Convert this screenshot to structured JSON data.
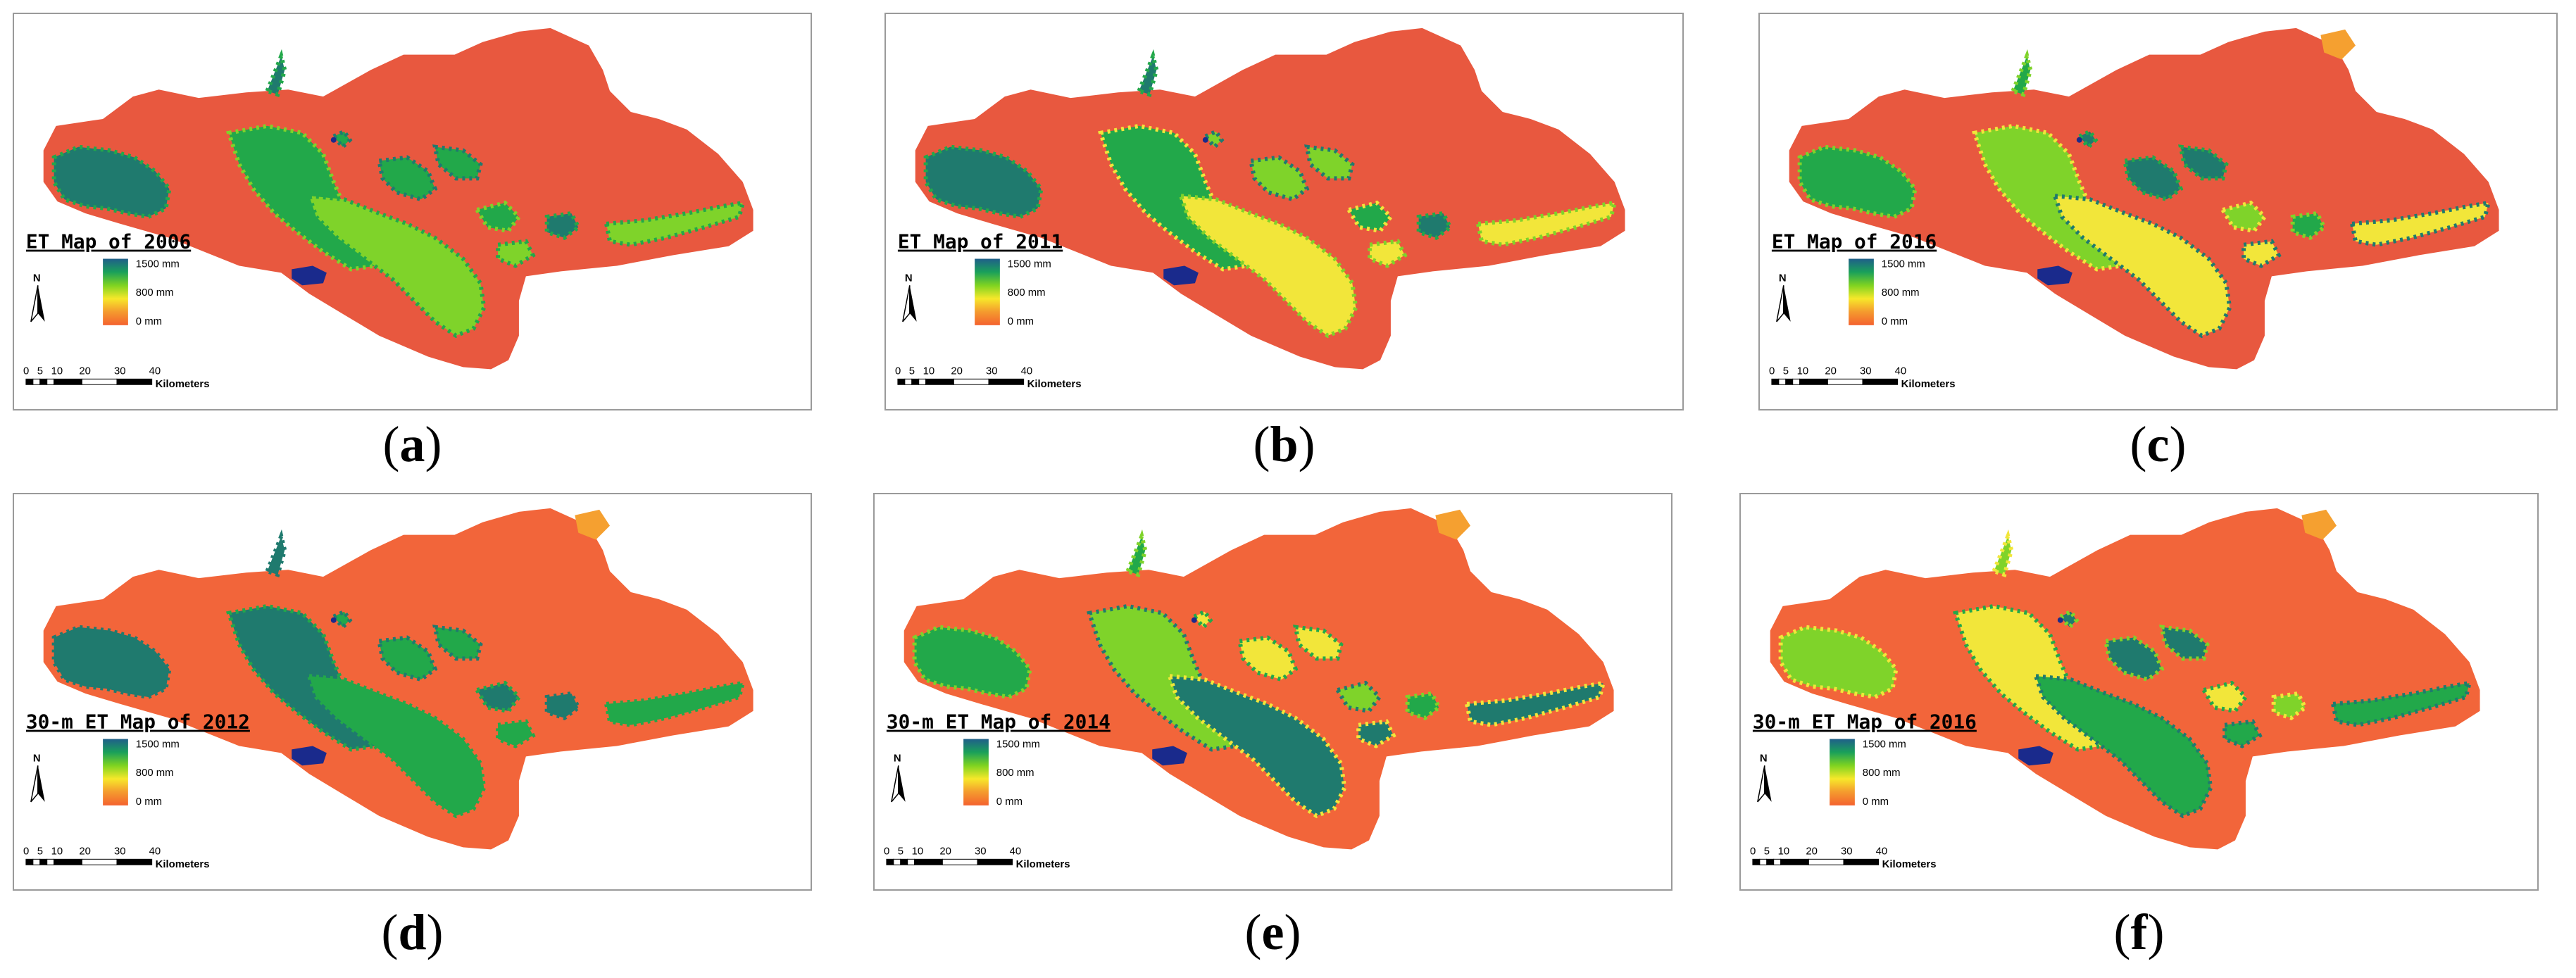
{
  "panels": [
    {
      "caption": "a",
      "title": "ET Map of 2006"
    },
    {
      "caption": "b",
      "title": "ET Map of 2011"
    },
    {
      "caption": "c",
      "title": "ET Map of 2016"
    },
    {
      "caption": "d",
      "title": "30-m ET Map of 2012"
    },
    {
      "caption": "e",
      "title": "30-m ET Map of 2014"
    },
    {
      "caption": "f",
      "title": "30-m ET Map of 2016"
    }
  ],
  "legend": {
    "max_label": "1500 mm",
    "mid_label": "800 mm",
    "min_label": "0 mm",
    "colors": [
      "#1f5f8a",
      "#1aa05a",
      "#7ed321",
      "#f7e82a",
      "#f49a2e",
      "#f4622f"
    ]
  },
  "north_label": "N",
  "scale_bar": {
    "ticks": [
      "0",
      "5",
      "10",
      "20",
      "30",
      "40"
    ],
    "unit": "Kilometers"
  },
  "colors": {
    "region": "#e8583f",
    "region_alt": "#f2653a",
    "vegetation_dark": "#1f7a6e",
    "vegetation_green": "#22a84a",
    "vegetation_light": "#7fd32a",
    "yellow": "#f2e63a",
    "lake": "#1a2a8c",
    "orange_patch": "#f5a030"
  }
}
